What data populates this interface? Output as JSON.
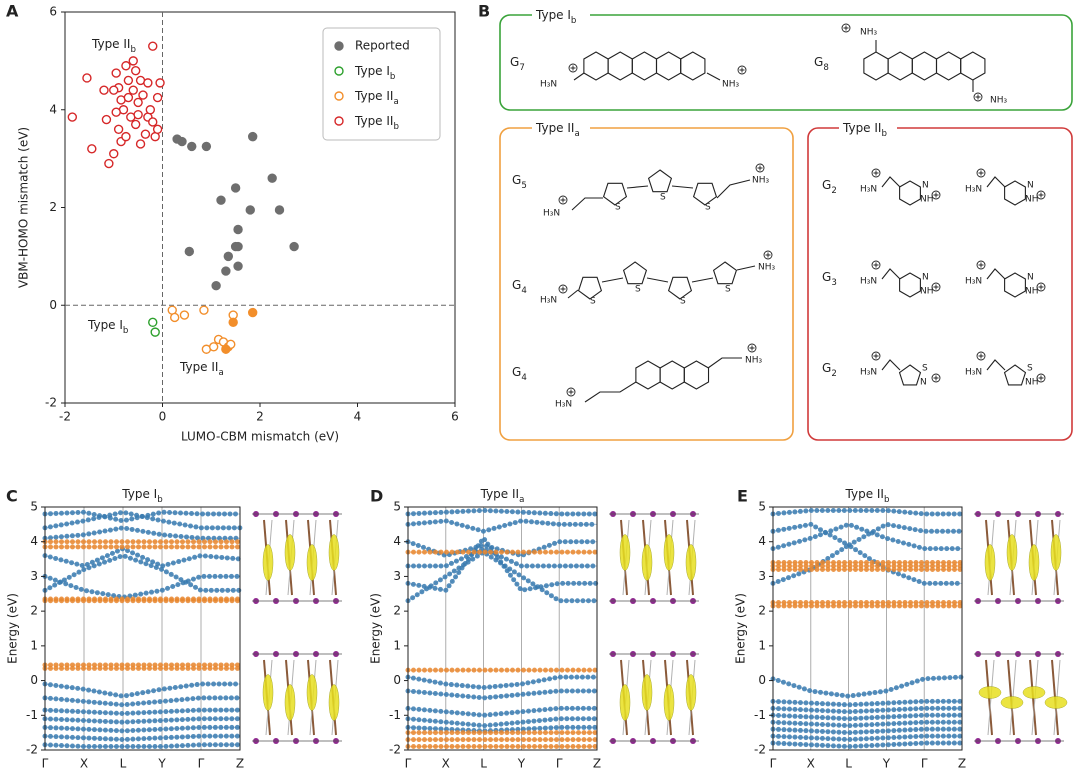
{
  "panel_labels": [
    "A",
    "B",
    "C",
    "D",
    "E"
  ],
  "chart_data": [
    {
      "type": "scatter",
      "xlabel": "LUMO-CBM mismatch (eV)",
      "ylabel": "VBM-HOMO mismatch (eV)",
      "xlim": [
        -2,
        6
      ],
      "ylim": [
        -2,
        6
      ],
      "xticks": [
        -2,
        0,
        2,
        4,
        6
      ],
      "yticks": [
        -2,
        0,
        2,
        4,
        6
      ],
      "zero_lines": true,
      "legend": "upper right",
      "annotations": [
        {
          "text": "Type II",
          "sub": "b"
        },
        {
          "text": "Type I",
          "sub": "b"
        },
        {
          "text": "Type II",
          "sub": "a"
        }
      ],
      "series": [
        {
          "name": "Reported",
          "color": "#6e6e6e",
          "filled_all": true,
          "x": [
            0.3,
            0.4,
            0.6,
            0.9,
            1.85,
            2.25,
            2.4,
            2.7,
            1.5,
            1.2,
            1.8,
            1.55,
            1.5,
            1.55,
            1.35,
            1.55,
            1.3,
            1.1,
            0.55
          ],
          "values": [
            3.4,
            3.35,
            3.25,
            3.25,
            3.45,
            2.6,
            1.95,
            1.2,
            2.4,
            2.15,
            1.95,
            1.55,
            1.2,
            1.2,
            1.0,
            0.8,
            0.7,
            0.4,
            1.1
          ]
        },
        {
          "name": "Type I",
          "name_sub": "b",
          "color": "#2ca02c",
          "x": [
            -0.2,
            -0.15
          ],
          "values": [
            -0.35,
            -0.55
          ]
        },
        {
          "name": "Type II",
          "name_sub": "a",
          "color": "#f28e2b",
          "x": [
            0.2,
            0.25,
            0.45,
            0.85,
            1.45,
            0.9,
            1.15,
            1.25,
            1.35,
            1.4,
            1.05,
            1.85,
            1.45,
            1.3
          ],
          "values": [
            -0.1,
            -0.25,
            -0.2,
            -0.1,
            -0.2,
            -0.9,
            -0.7,
            -0.75,
            -0.85,
            -0.8,
            -0.85,
            -0.15,
            -0.35,
            -0.9
          ],
          "filled": [
            false,
            false,
            false,
            false,
            false,
            false,
            false,
            false,
            false,
            false,
            false,
            true,
            true,
            true
          ]
        },
        {
          "name": "Type II",
          "name_sub": "b",
          "color": "#d62728",
          "x": [
            -1.85,
            -1.55,
            -1.45,
            -1.2,
            -1.15,
            -1.1,
            -1.0,
            -0.95,
            -0.9,
            -0.9,
            -0.85,
            -0.85,
            -0.8,
            -0.75,
            -0.7,
            -0.7,
            -0.65,
            -0.6,
            -0.6,
            -0.55,
            -0.5,
            -0.5,
            -0.45,
            -0.4,
            -0.35,
            -0.3,
            -0.3,
            -0.25,
            -0.2,
            -0.15,
            -0.1,
            -0.1,
            -0.05,
            -0.2,
            -0.55,
            -1.0,
            -0.95,
            -0.75,
            -0.45
          ],
          "values": [
            3.85,
            4.65,
            3.2,
            4.4,
            3.8,
            2.9,
            3.1,
            4.75,
            4.45,
            3.6,
            4.2,
            3.35,
            4.0,
            4.9,
            4.6,
            4.25,
            3.85,
            5.0,
            4.4,
            3.7,
            4.15,
            3.9,
            4.6,
            4.3,
            3.5,
            4.55,
            3.85,
            4.0,
            3.75,
            3.45,
            4.25,
            3.6,
            4.55,
            5.3,
            4.8,
            4.4,
            3.95,
            3.45,
            3.3
          ]
        }
      ]
    },
    {
      "type": "band",
      "title": "Type I",
      "title_sub": "b",
      "ylabel": "Energy (eV)",
      "ylim": [
        -2,
        5
      ],
      "yticks": [
        -2,
        -1,
        0,
        1,
        2,
        3,
        4,
        5
      ],
      "categories": [
        "Γ",
        "X",
        "L",
        "Y",
        "Γ",
        "Z"
      ],
      "series": [
        {
          "color": "#3a7bb0",
          "values": [
            4.4,
            4.6,
            4.85,
            4.6,
            4.4,
            4.4
          ]
        },
        {
          "color": "#3a7bb0",
          "values": [
            4.8,
            4.85,
            4.6,
            4.85,
            4.8,
            4.8
          ]
        },
        {
          "color": "#3a7bb0",
          "values": [
            4.1,
            4.2,
            4.4,
            4.2,
            4.1,
            4.1
          ]
        },
        {
          "color": "#3a7bb0",
          "values": [
            3.6,
            3.3,
            3.8,
            3.3,
            3.6,
            3.5
          ]
        },
        {
          "color": "#3a7bb0",
          "values": [
            3.0,
            2.6,
            2.4,
            2.6,
            3.0,
            3.0
          ]
        },
        {
          "color": "#3a7bb0",
          "values": [
            2.6,
            3.2,
            3.6,
            3.2,
            2.6,
            2.6
          ]
        },
        {
          "color": "#3a7bb0",
          "values": [
            -0.1,
            -0.25,
            -0.45,
            -0.25,
            -0.1,
            -0.1
          ]
        },
        {
          "color": "#3a7bb0",
          "values": [
            -0.5,
            -0.6,
            -0.7,
            -0.6,
            -0.5,
            -0.5
          ]
        },
        {
          "color": "#3a7bb0",
          "values": [
            -0.85,
            -0.9,
            -0.95,
            -0.9,
            -0.85,
            -0.85
          ]
        },
        {
          "color": "#3a7bb0",
          "values": [
            -1.1,
            -1.15,
            -1.2,
            -1.15,
            -1.1,
            -1.1
          ]
        },
        {
          "color": "#3a7bb0",
          "values": [
            -1.35,
            -1.4,
            -1.45,
            -1.4,
            -1.35,
            -1.35
          ]
        },
        {
          "color": "#3a7bb0",
          "values": [
            -1.6,
            -1.65,
            -1.7,
            -1.65,
            -1.6,
            -1.6
          ]
        },
        {
          "color": "#3a7bb0",
          "values": [
            -1.85,
            -1.9,
            -1.9,
            -1.9,
            -1.85,
            -1.85
          ]
        },
        {
          "color": "#e8862e",
          "values": [
            4.0,
            4.0,
            4.0,
            4.0,
            4.0,
            4.0
          ]
        },
        {
          "color": "#e8862e",
          "values": [
            3.85,
            3.85,
            3.85,
            3.85,
            3.85,
            3.85
          ]
        },
        {
          "color": "#e8862e",
          "values": [
            2.35,
            2.35,
            2.35,
            2.35,
            2.35,
            2.35
          ]
        },
        {
          "color": "#e8862e",
          "values": [
            2.3,
            2.3,
            2.3,
            2.3,
            2.3,
            2.3
          ]
        },
        {
          "color": "#e8862e",
          "values": [
            0.45,
            0.45,
            0.45,
            0.45,
            0.45,
            0.45
          ]
        },
        {
          "color": "#e8862e",
          "values": [
            0.35,
            0.35,
            0.35,
            0.35,
            0.35,
            0.35
          ]
        }
      ]
    },
    {
      "type": "band",
      "title": "Type II",
      "title_sub": "a",
      "ylabel": "Energy (eV)",
      "ylim": [
        -2,
        5
      ],
      "yticks": [
        -2,
        -1,
        0,
        1,
        2,
        3,
        4,
        5
      ],
      "categories": [
        "Γ",
        "X",
        "L",
        "Y",
        "Γ",
        "Z"
      ],
      "series": [
        {
          "color": "#3a7bb0",
          "values": [
            4.8,
            4.85,
            4.9,
            4.85,
            4.8,
            4.8
          ]
        },
        {
          "color": "#3a7bb0",
          "values": [
            4.5,
            4.6,
            4.3,
            4.6,
            4.5,
            4.5
          ]
        },
        {
          "color": "#3a7bb0",
          "values": [
            4.0,
            3.6,
            3.9,
            3.6,
            4.0,
            4.0
          ]
        },
        {
          "color": "#3a7bb0",
          "values": [
            3.3,
            3.3,
            3.8,
            3.3,
            3.3,
            3.3
          ]
        },
        {
          "color": "#3a7bb0",
          "values": [
            2.3,
            3.0,
            3.7,
            3.0,
            2.3,
            2.3
          ]
        },
        {
          "color": "#3a7bb0",
          "values": [
            2.8,
            2.6,
            4.1,
            2.6,
            2.8,
            2.8
          ]
        },
        {
          "color": "#3a7bb0",
          "values": [
            0.1,
            -0.1,
            -0.2,
            -0.1,
            0.1,
            0.1
          ]
        },
        {
          "color": "#3a7bb0",
          "values": [
            -0.3,
            -0.4,
            -0.5,
            -0.4,
            -0.3,
            -0.3
          ]
        },
        {
          "color": "#3a7bb0",
          "values": [
            -0.8,
            -0.9,
            -1.0,
            -0.9,
            -0.8,
            -0.8
          ]
        },
        {
          "color": "#3a7bb0",
          "values": [
            -1.1,
            -1.2,
            -1.3,
            -1.2,
            -1.1,
            -1.1
          ]
        },
        {
          "color": "#3a7bb0",
          "values": [
            -1.35,
            -1.4,
            -1.45,
            -1.4,
            -1.35,
            -1.35
          ]
        },
        {
          "color": "#e8862e",
          "values": [
            3.7,
            3.7,
            3.7,
            3.7,
            3.7,
            3.7
          ]
        },
        {
          "color": "#e8862e",
          "values": [
            0.3,
            0.3,
            0.3,
            0.3,
            0.3,
            0.3
          ]
        },
        {
          "color": "#e8862e",
          "values": [
            -1.5,
            -1.5,
            -1.5,
            -1.5,
            -1.5,
            -1.5
          ]
        },
        {
          "color": "#e8862e",
          "values": [
            -1.7,
            -1.7,
            -1.7,
            -1.7,
            -1.7,
            -1.7
          ]
        },
        {
          "color": "#e8862e",
          "values": [
            -1.9,
            -1.9,
            -1.9,
            -1.9,
            -1.9,
            -1.9
          ]
        }
      ]
    },
    {
      "type": "band",
      "title": "Type II",
      "title_sub": "b",
      "ylabel": "Energy (eV)",
      "ylim": [
        -2,
        5
      ],
      "yticks": [
        -2,
        -1,
        0,
        1,
        2,
        3,
        4,
        5
      ],
      "categories": [
        "Γ",
        "X",
        "L",
        "Y",
        "Γ",
        "Z"
      ],
      "series": [
        {
          "color": "#3a7bb0",
          "values": [
            4.8,
            4.9,
            4.9,
            4.9,
            4.8,
            4.8
          ]
        },
        {
          "color": "#3a7bb0",
          "values": [
            4.3,
            4.5,
            3.9,
            4.5,
            4.3,
            4.3
          ]
        },
        {
          "color": "#3a7bb0",
          "values": [
            3.8,
            4.1,
            4.5,
            4.1,
            3.8,
            3.8
          ]
        },
        {
          "color": "#3a7bb0",
          "values": [
            2.8,
            3.2,
            3.9,
            3.2,
            2.8,
            2.8
          ]
        },
        {
          "color": "#3a7bb0",
          "values": [
            0.05,
            -0.3,
            -0.45,
            -0.3,
            0.05,
            0.1
          ]
        },
        {
          "color": "#3a7bb0",
          "values": [
            -0.6,
            -0.65,
            -0.7,
            -0.65,
            -0.6,
            -0.6
          ]
        },
        {
          "color": "#3a7bb0",
          "values": [
            -0.8,
            -0.85,
            -0.9,
            -0.85,
            -0.8,
            -0.8
          ]
        },
        {
          "color": "#3a7bb0",
          "values": [
            -1.0,
            -1.05,
            -1.1,
            -1.05,
            -1.0,
            -1.0
          ]
        },
        {
          "color": "#3a7bb0",
          "values": [
            -1.2,
            -1.25,
            -1.3,
            -1.25,
            -1.2,
            -1.2
          ]
        },
        {
          "color": "#3a7bb0",
          "values": [
            -1.4,
            -1.45,
            -1.5,
            -1.45,
            -1.4,
            -1.4
          ]
        },
        {
          "color": "#3a7bb0",
          "values": [
            -1.6,
            -1.65,
            -1.7,
            -1.65,
            -1.6,
            -1.6
          ]
        },
        {
          "color": "#3a7bb0",
          "values": [
            -1.8,
            -1.85,
            -1.9,
            -1.85,
            -1.8,
            -1.8
          ]
        },
        {
          "color": "#e8862e",
          "values": [
            3.4,
            3.4,
            3.4,
            3.4,
            3.4,
            3.4
          ]
        },
        {
          "color": "#e8862e",
          "values": [
            3.3,
            3.3,
            3.3,
            3.3,
            3.3,
            3.3
          ]
        },
        {
          "color": "#e8862e",
          "values": [
            3.2,
            3.2,
            3.2,
            3.2,
            3.2,
            3.2
          ]
        },
        {
          "color": "#e8862e",
          "values": [
            2.25,
            2.25,
            2.25,
            2.25,
            2.25,
            2.25
          ]
        },
        {
          "color": "#e8862e",
          "values": [
            2.15,
            2.15,
            2.15,
            2.15,
            2.15,
            2.15
          ]
        }
      ]
    }
  ],
  "diagram": {
    "groups": [
      {
        "title": "Type I",
        "title_sub": "b",
        "color": "#3aa33a",
        "rows": [
          {
            "label": "G",
            "sub": "7",
            "molecules": [
              {
                "atoms": [
                  "H₃N",
                  "NH₃"
                ]
              }
            ]
          },
          {
            "label": "G",
            "sub": "8",
            "molecules": [
              {
                "atoms": [
                  "NH₃",
                  "NH₃"
                ]
              }
            ]
          }
        ]
      },
      {
        "title": "Type II",
        "title_sub": "a",
        "color": "#f0a040",
        "rows": [
          {
            "label": "G",
            "sub": "5",
            "molecules": [
              {
                "atoms": [
                  "H₃N",
                  "S",
                  "S",
                  "S",
                  "NH₃"
                ]
              }
            ]
          },
          {
            "label": "G",
            "sub": "4",
            "molecules": [
              {
                "atoms": [
                  "H₃N",
                  "S",
                  "S",
                  "S",
                  "S",
                  "NH₃"
                ]
              }
            ]
          },
          {
            "label": "G",
            "sub": "4",
            "molecules": [
              {
                "atoms": [
                  "H₃N",
                  "NH₃"
                ]
              }
            ]
          }
        ]
      },
      {
        "title": "Type II",
        "title_sub": "b",
        "color": "#d03a3a",
        "rows": [
          {
            "label": "G",
            "sub": "2",
            "molecules": [
              {
                "atoms": [
                  "H₃N",
                  "N",
                  "NH"
                ]
              },
              {
                "atoms": [
                  "H₃N",
                  "N",
                  "NH"
                ]
              }
            ]
          },
          {
            "label": "G",
            "sub": "3",
            "molecules": [
              {
                "atoms": [
                  "H₃N",
                  "N",
                  "NH"
                ]
              },
              {
                "atoms": [
                  "H₃N",
                  "N",
                  "NH"
                ]
              }
            ]
          },
          {
            "label": "G",
            "sub": "2",
            "molecules": [
              {
                "atoms": [
                  "H₃N",
                  "S",
                  "N"
                ]
              },
              {
                "atoms": [
                  "H₃N",
                  "S",
                  "NH"
                ]
              }
            ]
          }
        ]
      }
    ]
  }
}
